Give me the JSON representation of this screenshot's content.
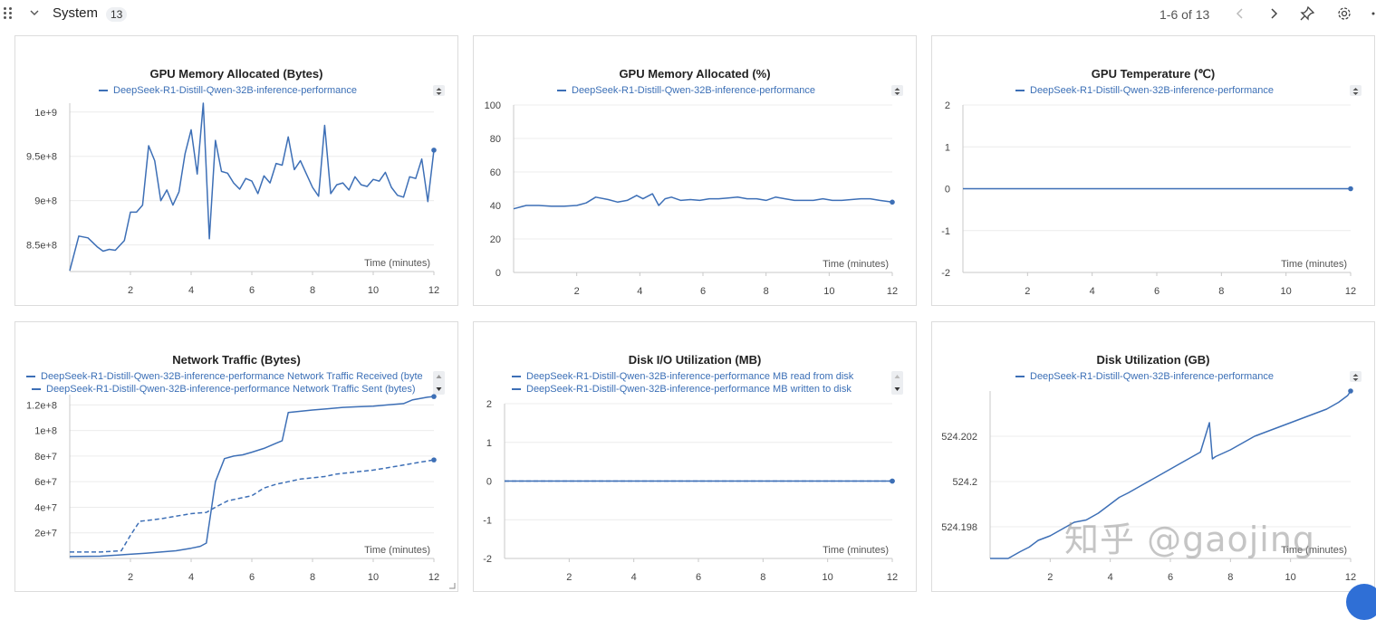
{
  "section": {
    "title": "System",
    "count": "13",
    "pager": "1-6 of 13"
  },
  "colors": {
    "line": "#3d6fb6",
    "grid": "#ececec",
    "axis": "#c8c8c8"
  },
  "watermark": "知乎 @gaojing",
  "panels": [
    {
      "title": "GPU Memory Allocated (Bytes)",
      "legend": [
        "DeepSeek-R1-Distill-Qwen-32B-inference-performance"
      ],
      "xlabel": "Time (minutes)",
      "ytick_labels": [
        "8.5e+8",
        "9e+8",
        "9.5e+8",
        "1e+9"
      ],
      "xtick_labels": [
        "2",
        "4",
        "6",
        "8",
        "10",
        "12"
      ]
    },
    {
      "title": "GPU Memory Allocated (%)",
      "legend": [
        "DeepSeek-R1-Distill-Qwen-32B-inference-performance"
      ],
      "xlabel": "Time (minutes)",
      "ytick_labels": [
        "0",
        "20",
        "40",
        "60",
        "80",
        "100"
      ],
      "xtick_labels": [
        "2",
        "4",
        "6",
        "8",
        "10",
        "12"
      ]
    },
    {
      "title": "GPU Temperature (℃)",
      "legend": [
        "DeepSeek-R1-Distill-Qwen-32B-inference-performance"
      ],
      "xlabel": "Time (minutes)",
      "ytick_labels": [
        "-2",
        "-1",
        "0",
        "1",
        "2"
      ],
      "xtick_labels": [
        "2",
        "4",
        "6",
        "8",
        "10",
        "12"
      ]
    },
    {
      "title": "Network Traffic (Bytes)",
      "legend": [
        "DeepSeek-R1-Distill-Qwen-32B-inference-performance Network Traffic Received (byte",
        "DeepSeek-R1-Distill-Qwen-32B-inference-performance Network Traffic Sent (bytes)"
      ],
      "xlabel": "Time (minutes)",
      "ytick_labels": [
        "2e+7",
        "4e+7",
        "6e+7",
        "8e+7",
        "1e+8",
        "1.2e+8"
      ],
      "xtick_labels": [
        "2",
        "4",
        "6",
        "8",
        "10",
        "12"
      ]
    },
    {
      "title": "Disk I/O Utilization (MB)",
      "legend": [
        "DeepSeek-R1-Distill-Qwen-32B-inference-performance MB read from disk",
        "DeepSeek-R1-Distill-Qwen-32B-inference-performance MB written to disk"
      ],
      "xlabel": "Time (minutes)",
      "ytick_labels": [
        "-2",
        "-1",
        "0",
        "1",
        "2"
      ],
      "xtick_labels": [
        "2",
        "4",
        "6",
        "8",
        "10",
        "12"
      ]
    },
    {
      "title": "Disk Utilization (GB)",
      "legend": [
        "DeepSeek-R1-Distill-Qwen-32B-inference-performance"
      ],
      "xlabel": "Time (minutes)",
      "ytick_labels": [
        "524.198",
        "524.2",
        "524.202"
      ],
      "xtick_labels": [
        "2",
        "4",
        "6",
        "8",
        "10",
        "12"
      ]
    }
  ],
  "chart_data": [
    {
      "type": "line",
      "title": "GPU Memory Allocated (Bytes)",
      "xlabel": "Time (minutes)",
      "xlim": [
        0,
        12
      ],
      "ylim": [
        820000000,
        1010000000
      ],
      "yticks": [
        850000000,
        900000000,
        950000000,
        1000000000
      ],
      "xticks": [
        2,
        4,
        6,
        8,
        10,
        12
      ],
      "series": [
        {
          "name": "DeepSeek-R1-Distill-Qwen-32B-inference-performance",
          "dash": false,
          "x": [
            0.0,
            0.3,
            0.6,
            0.9,
            1.1,
            1.3,
            1.5,
            1.8,
            2.0,
            2.2,
            2.4,
            2.6,
            2.8,
            3.0,
            3.2,
            3.4,
            3.6,
            3.8,
            4.0,
            4.2,
            4.4,
            4.6,
            4.8,
            5.0,
            5.2,
            5.4,
            5.6,
            5.8,
            6.0,
            6.2,
            6.4,
            6.6,
            6.8,
            7.0,
            7.2,
            7.4,
            7.6,
            7.8,
            8.0,
            8.2,
            8.4,
            8.6,
            8.8,
            9.0,
            9.2,
            9.4,
            9.6,
            9.8,
            10.0,
            10.2,
            10.4,
            10.6,
            10.8,
            11.0,
            11.2,
            11.4,
            11.6,
            11.8,
            12.0
          ],
          "y": [
            821000000,
            860000000,
            858000000,
            848000000,
            843000000,
            845000000,
            844000000,
            855000000,
            887000000,
            887000000,
            895000000,
            962000000,
            945000000,
            900000000,
            912000000,
            895000000,
            910000000,
            953000000,
            980000000,
            930000000,
            1010000000,
            857000000,
            968000000,
            933000000,
            931000000,
            920000000,
            913000000,
            925000000,
            922000000,
            908000000,
            928000000,
            920000000,
            942000000,
            940000000,
            972000000,
            935000000,
            945000000,
            930000000,
            915000000,
            905000000,
            985000000,
            908000000,
            918000000,
            920000000,
            912000000,
            927000000,
            918000000,
            916000000,
            924000000,
            922000000,
            932000000,
            915000000,
            906000000,
            904000000,
            927000000,
            925000000,
            947000000,
            899000000,
            957000000
          ]
        }
      ]
    },
    {
      "type": "line",
      "title": "GPU Memory Allocated (%)",
      "xlabel": "Time (minutes)",
      "xlim": [
        0,
        12
      ],
      "ylim": [
        0,
        100
      ],
      "yticks": [
        0,
        20,
        40,
        60,
        80,
        100
      ],
      "xticks": [
        2,
        4,
        6,
        8,
        10,
        12
      ],
      "series": [
        {
          "name": "DeepSeek-R1-Distill-Qwen-32B-inference-performance",
          "dash": false,
          "x": [
            0,
            0.4,
            0.8,
            1.2,
            1.6,
            2.0,
            2.3,
            2.6,
            3.0,
            3.3,
            3.6,
            3.9,
            4.1,
            4.4,
            4.6,
            4.8,
            5.0,
            5.3,
            5.6,
            5.9,
            6.2,
            6.5,
            6.8,
            7.1,
            7.4,
            7.7,
            8.0,
            8.3,
            8.6,
            8.9,
            9.2,
            9.5,
            9.8,
            10.1,
            10.4,
            10.7,
            11.0,
            11.3,
            11.6,
            12.0
          ],
          "y": [
            38,
            40,
            40,
            39.5,
            39.5,
            40,
            41.5,
            45,
            43.5,
            42,
            43,
            46,
            44,
            47,
            40,
            44,
            45,
            43,
            43.5,
            43,
            44,
            44,
            44.5,
            45,
            44,
            44,
            43,
            45,
            44,
            43,
            43,
            43,
            44,
            43,
            43,
            43.5,
            44,
            44,
            43,
            42
          ]
        }
      ]
    },
    {
      "type": "line",
      "title": "GPU Temperature (℃)",
      "xlabel": "Time (minutes)",
      "xlim": [
        0,
        12
      ],
      "ylim": [
        -2,
        2
      ],
      "yticks": [
        -2,
        -1,
        0,
        1,
        2
      ],
      "xticks": [
        2,
        4,
        6,
        8,
        10,
        12
      ],
      "series": [
        {
          "name": "DeepSeek-R1-Distill-Qwen-32B-inference-performance",
          "dash": false,
          "x": [
            0,
            12
          ],
          "y": [
            0,
            0
          ]
        }
      ]
    },
    {
      "type": "line",
      "title": "Network Traffic (Bytes)",
      "xlabel": "Time (minutes)",
      "xlim": [
        0,
        12
      ],
      "ylim": [
        0,
        128000000
      ],
      "yticks": [
        20000000,
        40000000,
        60000000,
        80000000,
        100000000,
        120000000
      ],
      "xticks": [
        2,
        4,
        6,
        8,
        10,
        12
      ],
      "series": [
        {
          "name": "DeepSeek-R1-Distill-Qwen-32B-inference-performance Network Traffic Received (byte",
          "dash": false,
          "x": [
            0,
            1,
            1.8,
            2.5,
            3.0,
            3.5,
            4.0,
            4.3,
            4.5,
            4.8,
            5.1,
            5.4,
            5.7,
            6.0,
            6.4,
            6.8,
            7.0,
            7.2,
            7.6,
            8.0,
            8.5,
            9.0,
            9.5,
            10.0,
            10.5,
            11.0,
            11.3,
            11.8,
            12.0
          ],
          "y": [
            1500000,
            1800000,
            3000000,
            4000000,
            5000000,
            6000000,
            8000000,
            9500000,
            12000000,
            60000000,
            78000000,
            80000000,
            81000000,
            83000000,
            86000000,
            90000000,
            92000000,
            114000000,
            115000000,
            116000000,
            117000000,
            118000000,
            118500000,
            119000000,
            120000000,
            121000000,
            124000000,
            126000000,
            126500000
          ]
        },
        {
          "name": "DeepSeek-R1-Distill-Qwen-32B-inference-performance Network Traffic Sent (bytes)",
          "dash": true,
          "x": [
            0,
            1.0,
            1.7,
            2.0,
            2.3,
            3.0,
            3.5,
            4.0,
            4.5,
            4.8,
            5.2,
            5.6,
            6.0,
            6.4,
            6.8,
            7.2,
            7.6,
            8.0,
            8.4,
            8.8,
            9.2,
            9.6,
            10.0,
            10.5,
            11.0,
            11.5,
            12.0
          ],
          "y": [
            5000000,
            5000000,
            6000000,
            18000000,
            29000000,
            31000000,
            33000000,
            35000000,
            36000000,
            40000000,
            45000000,
            47000000,
            49000000,
            55000000,
            58000000,
            60000000,
            62000000,
            63000000,
            64000000,
            66000000,
            67000000,
            68000000,
            69000000,
            71000000,
            73000000,
            75000000,
            77000000
          ]
        }
      ]
    },
    {
      "type": "line",
      "title": "Disk I/O Utilization (MB)",
      "xlabel": "Time (minutes)",
      "xlim": [
        0,
        12
      ],
      "ylim": [
        -2,
        2
      ],
      "yticks": [
        -2,
        -1,
        0,
        1,
        2
      ],
      "xticks": [
        2,
        4,
        6,
        8,
        10,
        12
      ],
      "series": [
        {
          "name": "DeepSeek-R1-Distill-Qwen-32B-inference-performance MB read from disk",
          "dash": false,
          "x": [
            0,
            12
          ],
          "y": [
            0,
            0
          ]
        },
        {
          "name": "DeepSeek-R1-Distill-Qwen-32B-inference-performance MB written to disk",
          "dash": true,
          "x": [
            0,
            12
          ],
          "y": [
            0,
            0
          ]
        }
      ]
    },
    {
      "type": "line",
      "title": "Disk Utilization (GB)",
      "xlabel": "Time (minutes)",
      "xlim": [
        0,
        12
      ],
      "ylim": [
        524.1966,
        524.204
      ],
      "yticks": [
        524.198,
        524.2,
        524.202
      ],
      "xticks": [
        2,
        4,
        6,
        8,
        10,
        12
      ],
      "series": [
        {
          "name": "DeepSeek-R1-Distill-Qwen-32B-inference-performance",
          "dash": false,
          "x": [
            0,
            0.6,
            1.0,
            1.3,
            1.6,
            2.0,
            2.4,
            2.8,
            3.2,
            3.6,
            4.0,
            4.3,
            4.6,
            5.0,
            5.4,
            5.8,
            6.2,
            6.6,
            7.0,
            7.3,
            7.4,
            7.5,
            8.0,
            8.4,
            8.8,
            9.2,
            9.6,
            10.0,
            10.4,
            10.8,
            11.2,
            11.6,
            11.9,
            12.0
          ],
          "y": [
            524.1966,
            524.1966,
            524.1969,
            524.1971,
            524.1974,
            524.1976,
            524.1979,
            524.1982,
            524.1983,
            524.1986,
            524.199,
            524.1993,
            524.1995,
            524.1998,
            524.2001,
            524.2004,
            524.2007,
            524.201,
            524.2013,
            524.2026,
            524.201,
            524.2011,
            524.2014,
            524.2017,
            524.202,
            524.2022,
            524.2024,
            524.2026,
            524.2028,
            524.203,
            524.2032,
            524.2035,
            524.2038,
            524.204
          ]
        }
      ]
    }
  ]
}
